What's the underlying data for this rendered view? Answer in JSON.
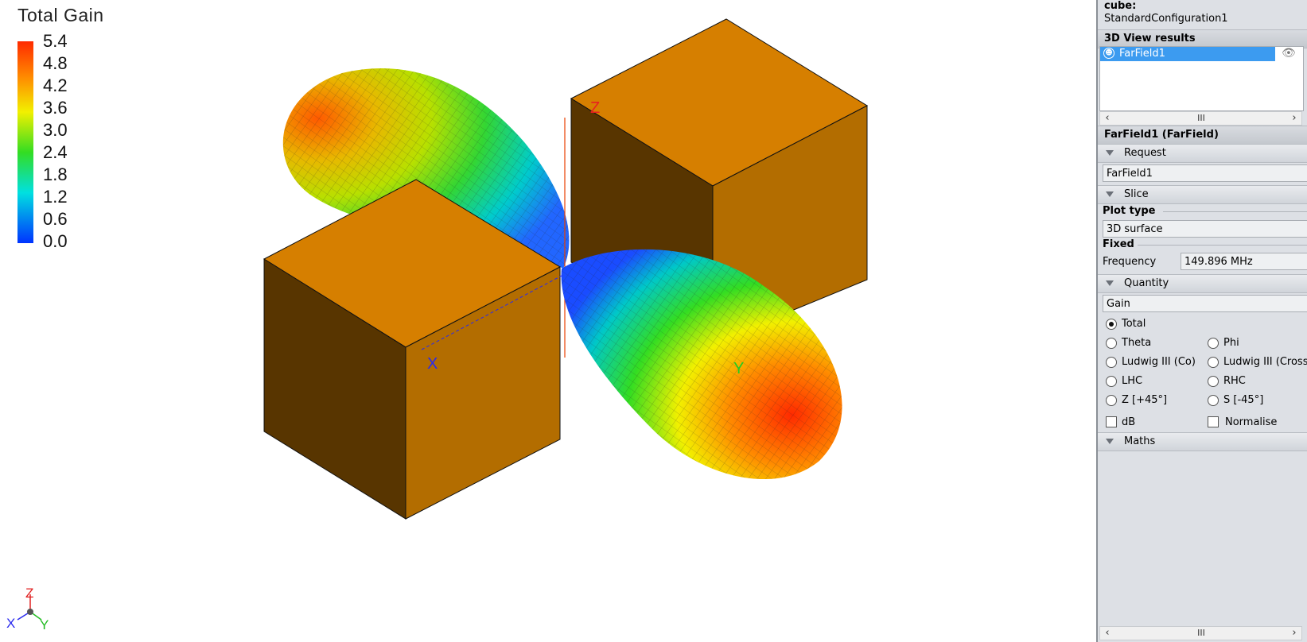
{
  "legend": {
    "title": "Total Gain",
    "ticks": [
      "5.4",
      "4.8",
      "4.2",
      "3.6",
      "3.0",
      "2.4",
      "1.8",
      "1.2",
      "0.6",
      "0.0"
    ]
  },
  "axes": {
    "x": "X",
    "y": "Y",
    "z": "Z"
  },
  "colors": {
    "cube_top": "#d67f00",
    "cube_left": "#583500",
    "cube_right": "#b36d00",
    "panel_bg": "#dde0e5",
    "selection": "#3c9bf0"
  },
  "panel": {
    "config_label": "cube:",
    "config_name": "StandardConfiguration1",
    "results_header": "3D View results",
    "results_items": [
      {
        "label": "FarField1",
        "icon": "farfield-icon",
        "visibility_icon": "eye-icon"
      }
    ],
    "scroll_thumb": "III",
    "properties_title": "FarField1 (FarField)",
    "request": {
      "header": "Request",
      "value": "FarField1"
    },
    "slice": {
      "header": "Slice"
    },
    "plot_type": {
      "label": "Plot type",
      "value": "3D surface"
    },
    "fixed": {
      "label": "Fixed",
      "frequency_label": "Frequency",
      "frequency_value": "149.896 MHz"
    },
    "quantity": {
      "header": "Quantity",
      "value": "Gain",
      "radios": [
        "Total",
        "Theta",
        "Phi",
        "Ludwig III (Co)",
        "Ludwig III (Cross)",
        "LHC",
        "RHC",
        "Z [+45°]",
        "S [-45°]"
      ],
      "selected": "Total",
      "db_label": "dB",
      "normalise_label": "Normalise"
    },
    "maths": {
      "header": "Maths"
    }
  }
}
